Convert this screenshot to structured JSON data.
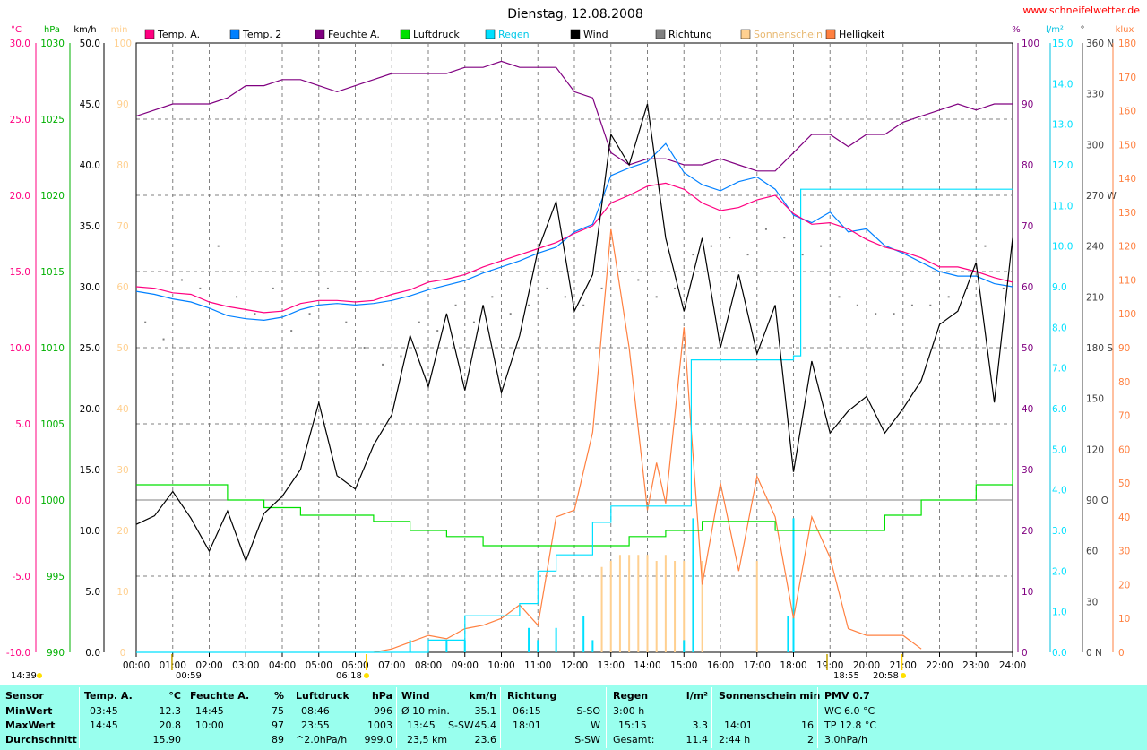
{
  "header": {
    "title": "Dienstag, 12.08.2008",
    "site": "www.schneifelwetter.de"
  },
  "legend": [
    {
      "label": "Temp. A.",
      "color": "#ff0080"
    },
    {
      "label": "Temp. 2",
      "color": "#0080ff"
    },
    {
      "label": "Feuchte A.",
      "color": "#800080"
    },
    {
      "label": "Luftdruck",
      "color": "#00e000"
    },
    {
      "label": "Regen",
      "color": "#00e0ff"
    },
    {
      "label": "Wind",
      "color": "#000000"
    },
    {
      "label": "Richtung",
      "color": "#808080"
    },
    {
      "label": "Sonnenschein",
      "color": "#ffd090"
    },
    {
      "label": "Helligkeit",
      "color": "#ff8040"
    }
  ],
  "axes_units": {
    "temp": "°C",
    "pressure": "hPa",
    "wind": "km/h",
    "sun": "min",
    "humidity": "%",
    "rain": "l/m²",
    "direction": "°",
    "bright": "klux"
  },
  "sun_events": {
    "sunrise": "06:18",
    "sunset": "20:58",
    "moon_set": "00:59",
    "moon_rise": "18:55",
    "day_length": "14:39"
  },
  "chart_data": {
    "type": "line",
    "x_range": [
      "00:00",
      "24:00"
    ],
    "x_ticks": [
      "00:00",
      "01:00",
      "02:00",
      "03:00",
      "04:00",
      "05:00",
      "06:00",
      "07:00",
      "08:00",
      "09:00",
      "10:00",
      "11:00",
      "12:00",
      "13:00",
      "14:00",
      "15:00",
      "16:00",
      "17:00",
      "18:00",
      "19:00",
      "20:00",
      "21:00",
      "22:00",
      "23:00",
      "24:00"
    ],
    "y_axes": {
      "temp": {
        "range": [
          -10,
          30
        ],
        "ticks": [
          "-10.0",
          "-5.0",
          "0.0",
          "5.0",
          "10.0",
          "15.0",
          "20.0",
          "25.0",
          "30.0"
        ],
        "color": "#ff0080"
      },
      "pressure": {
        "range": [
          990,
          1030
        ],
        "ticks": [
          "990",
          "995",
          "1000",
          "1005",
          "1010",
          "1015",
          "1020",
          "1025",
          "1030"
        ],
        "color": "#00b000"
      },
      "wind": {
        "range": [
          0,
          50
        ],
        "ticks": [
          "0.0",
          "5.0",
          "10.0",
          "15.0",
          "20.0",
          "25.0",
          "30.0",
          "35.0",
          "40.0",
          "45.0",
          "50.0"
        ],
        "color": "#000000"
      },
      "sun": {
        "range": [
          0,
          100
        ],
        "ticks": [
          "0",
          "10",
          "20",
          "30",
          "40",
          "50",
          "60",
          "70",
          "80",
          "90",
          "100"
        ],
        "color": "#ffd090"
      },
      "humidity": {
        "range": [
          0,
          100
        ],
        "ticks": [
          "0",
          "10",
          "20",
          "30",
          "40",
          "50",
          "60",
          "70",
          "80",
          "90",
          "100"
        ],
        "color": "#800080"
      },
      "rain": {
        "range": [
          0,
          15
        ],
        "ticks": [
          "0.0",
          "1.0",
          "2.0",
          "3.0",
          "4.0",
          "5.0",
          "6.0",
          "7.0",
          "8.0",
          "9.0",
          "10.0",
          "11.0",
          "12.0",
          "13.0",
          "14.0",
          "15.0"
        ],
        "color": "#00e0ff"
      },
      "direction": {
        "range": [
          0,
          360
        ],
        "ticks": [
          "0 N",
          "30",
          "60",
          "90 O",
          "120",
          "150",
          "180 S",
          "210",
          "240",
          "270 W",
          "300",
          "330",
          "360 N"
        ],
        "color": "#404040"
      },
      "bright": {
        "range": [
          0,
          180
        ],
        "ticks": [
          "0",
          "10",
          "20",
          "30",
          "40",
          "50",
          "60",
          "70",
          "80",
          "90",
          "100",
          "110",
          "120",
          "130",
          "140",
          "150",
          "160",
          "170",
          "180"
        ],
        "color": "#ff8040"
      }
    },
    "series": [
      {
        "name": "Temp. A.",
        "axis": "temp",
        "color": "#ff0080",
        "x": [
          0,
          0.5,
          1,
          1.5,
          2,
          2.5,
          3,
          3.5,
          4,
          4.5,
          5,
          5.5,
          6,
          6.5,
          7,
          7.5,
          8,
          8.5,
          9,
          9.5,
          10,
          10.5,
          11,
          11.5,
          12,
          12.5,
          13,
          13.5,
          14,
          14.5,
          15,
          15.5,
          16,
          16.5,
          17,
          17.5,
          18,
          18.5,
          19,
          19.5,
          20,
          20.5,
          21,
          21.5,
          22,
          22.5,
          23,
          23.5,
          24
        ],
        "y": [
          14.0,
          13.9,
          13.6,
          13.5,
          13.0,
          12.7,
          12.5,
          12.3,
          12.4,
          12.9,
          13.1,
          13.1,
          13.0,
          13.1,
          13.5,
          13.8,
          14.3,
          14.5,
          14.8,
          15.3,
          15.7,
          16.1,
          16.5,
          16.9,
          17.5,
          18.0,
          19.5,
          20.0,
          20.6,
          20.8,
          20.4,
          19.5,
          19.0,
          19.2,
          19.7,
          20.0,
          18.8,
          18.1,
          18.2,
          17.8,
          17.1,
          16.6,
          16.3,
          15.9,
          15.3,
          15.3,
          15.0,
          14.6,
          14.3
        ]
      },
      {
        "name": "Temp. 2",
        "axis": "temp",
        "color": "#0080ff",
        "x": [
          0,
          0.5,
          1,
          1.5,
          2,
          2.5,
          3,
          3.5,
          4,
          4.5,
          5,
          5.5,
          6,
          6.5,
          7,
          7.5,
          8,
          8.5,
          9,
          9.5,
          10,
          10.5,
          11,
          11.5,
          12,
          12.5,
          13,
          13.5,
          14,
          14.5,
          15,
          15.5,
          16,
          16.5,
          17,
          17.5,
          18,
          18.5,
          19,
          19.5,
          20,
          20.5,
          21,
          21.5,
          22,
          22.5,
          23,
          23.5,
          24
        ],
        "y": [
          13.7,
          13.5,
          13.2,
          13.0,
          12.6,
          12.1,
          11.9,
          11.8,
          12.0,
          12.5,
          12.8,
          12.9,
          12.8,
          12.9,
          13.1,
          13.4,
          13.8,
          14.1,
          14.4,
          14.9,
          15.3,
          15.7,
          16.2,
          16.6,
          17.6,
          18.1,
          21.3,
          21.8,
          22.2,
          23.4,
          21.5,
          20.7,
          20.3,
          20.9,
          21.2,
          20.4,
          18.7,
          18.2,
          18.9,
          17.6,
          17.8,
          16.7,
          16.2,
          15.6,
          15.0,
          14.7,
          14.7,
          14.2,
          14.0
        ]
      },
      {
        "name": "Feuchte A.",
        "axis": "humidity",
        "color": "#800080",
        "x": [
          0,
          0.5,
          1,
          1.5,
          2,
          2.5,
          3,
          3.5,
          4,
          4.5,
          5,
          5.5,
          6,
          6.5,
          7,
          7.5,
          8,
          8.5,
          9,
          9.5,
          10,
          10.5,
          11,
          11.5,
          12,
          12.5,
          13,
          13.5,
          14,
          14.5,
          15,
          15.5,
          16,
          16.5,
          17,
          17.5,
          18,
          18.5,
          19,
          19.5,
          20,
          20.5,
          21,
          21.5,
          22,
          22.5,
          23,
          23.5,
          24
        ],
        "y": [
          88,
          89,
          90,
          90,
          90,
          91,
          93,
          93,
          94,
          94,
          93,
          92,
          93,
          94,
          95,
          95,
          95,
          95,
          96,
          96,
          97,
          96,
          96,
          96,
          92,
          91,
          82,
          80,
          81,
          81,
          80,
          80,
          81,
          80,
          79,
          79,
          82,
          85,
          85,
          83,
          85,
          85,
          87,
          88,
          89,
          90,
          89,
          90,
          90
        ]
      },
      {
        "name": "Luftdruck",
        "axis": "pressure",
        "color": "#00e000",
        "x": [
          0,
          1.5,
          2.5,
          3.5,
          4.5,
          5.5,
          6.5,
          7.5,
          8.5,
          9.5,
          10.5,
          11.5,
          12.5,
          13.5,
          14.5,
          15.5,
          16.5,
          17.5,
          18.5,
          19.5,
          20.5,
          21.5,
          22.5,
          23,
          23.5,
          24
        ],
        "y": [
          1001,
          1001,
          1000,
          999.5,
          999,
          999,
          998.6,
          998,
          997.6,
          997,
          997,
          997,
          997,
          997.6,
          998,
          998.6,
          998.6,
          998,
          998,
          998,
          999,
          1000,
          1000,
          1001,
          1001,
          1002
        ]
      },
      {
        "name": "Regen",
        "axis": "rain",
        "color": "#00e0ff",
        "x": [
          0,
          7.5,
          8,
          8.5,
          9,
          10,
          10.5,
          11,
          11.5,
          12,
          12.5,
          13,
          14,
          15,
          15.2,
          15.5,
          17,
          18,
          18.2,
          18.5,
          24
        ],
        "y": [
          0,
          0,
          0.3,
          0.3,
          0.9,
          0.9,
          1.2,
          2.0,
          2.4,
          2.4,
          3.2,
          3.6,
          3.6,
          3.6,
          7.2,
          7.2,
          7.2,
          7.3,
          11.4,
          11.4,
          11.4
        ]
      },
      {
        "name": "Wind",
        "axis": "wind",
        "color": "#000000",
        "x": [
          0,
          0.5,
          1,
          1.5,
          2,
          2.5,
          3,
          3.5,
          4,
          4.5,
          5,
          5.5,
          6,
          6.5,
          7,
          7.5,
          8,
          8.5,
          9,
          9.5,
          10,
          10.5,
          11,
          11.5,
          12,
          12.5,
          13,
          13.5,
          14,
          14.5,
          15,
          15.5,
          16,
          16.5,
          17,
          17.5,
          18,
          18.5,
          19,
          19.5,
          20,
          20.5,
          21,
          21.5,
          22,
          22.5,
          23,
          23.5,
          24
        ],
        "y": [
          10.5,
          11.2,
          13.2,
          11.0,
          8.3,
          11.6,
          7.5,
          11.4,
          12.8,
          15.0,
          20.5,
          14.5,
          13.4,
          17.0,
          19.5,
          26.0,
          21.8,
          27.8,
          21.5,
          28.5,
          21.3,
          26.0,
          33.0,
          37.0,
          28.0,
          31.0,
          42.5,
          40.0,
          45.0,
          34.0,
          28.0,
          34.0,
          25.0,
          31.0,
          24.5,
          28.5,
          14.8,
          23.9,
          18.0,
          19.8,
          21.0,
          18.0,
          20.0,
          22.3,
          26.9,
          28.0,
          32.0,
          20.5,
          34.0
        ]
      },
      {
        "name": "Richtung",
        "axis": "direction",
        "color": "#808080",
        "x": [
          0.25,
          0.75,
          1.25,
          1.75,
          2.25,
          2.75,
          3.25,
          3.75,
          4.25,
          4.75,
          5.25,
          5.75,
          6.25,
          6.75,
          7.25,
          7.75,
          8.25,
          8.75,
          9.25,
          9.75,
          10.25,
          10.75,
          11.25,
          11.75,
          12.25,
          12.75,
          13.25,
          13.75,
          14.25,
          14.75,
          15.25,
          15.75,
          16.25,
          16.75,
          17.25,
          17.75,
          18.25,
          18.75,
          19.25,
          19.75,
          20.25,
          20.75,
          21.25,
          21.75,
          22.25,
          22.75,
          23.25,
          23.75
        ],
        "y": [
          195,
          185,
          220,
          215,
          240,
          210,
          200,
          215,
          190,
          200,
          215,
          195,
          180,
          170,
          175,
          195,
          190,
          205,
          195,
          210,
          200,
          205,
          215,
          210,
          205,
          215,
          225,
          220,
          210,
          215,
          235,
          240,
          245,
          235,
          250,
          245,
          235,
          240,
          210,
          205,
          200,
          200,
          205,
          205,
          210,
          215,
          240,
          215
        ]
      },
      {
        "name": "Sonnenschein",
        "axis": "sun",
        "color": "#ffd090",
        "x": [
          12.75,
          13.0,
          13.25,
          13.5,
          13.75,
          14.0,
          14.25,
          14.5,
          14.75,
          15.0,
          15.25,
          15.5,
          17.0
        ],
        "y": [
          14,
          15,
          16,
          16,
          16,
          16,
          15,
          16,
          15,
          15,
          16,
          15,
          15
        ]
      },
      {
        "name": "Helligkeit",
        "axis": "bright",
        "color": "#ff8040",
        "x": [
          6.5,
          7,
          7.5,
          8,
          8.5,
          9,
          9.5,
          10,
          10.5,
          11,
          11.5,
          12,
          12.5,
          13,
          13.5,
          14,
          14.25,
          14.5,
          15,
          15.5,
          16,
          16.5,
          17,
          17.5,
          18,
          18.5,
          19,
          19.5,
          20,
          20.5,
          21,
          21.5
        ],
        "y": [
          0,
          1,
          3,
          5,
          4,
          7,
          8,
          10,
          14,
          8,
          40,
          42,
          65,
          125,
          90,
          42,
          56,
          44,
          96,
          20,
          50,
          24,
          52,
          40,
          10,
          40,
          28,
          7,
          5,
          5,
          5,
          1
        ]
      }
    ]
  },
  "stats": {
    "headers": {
      "sensor": "Sensor",
      "temp": "Temp. A.",
      "temp_unit": "°C",
      "feuchte": "Feuchte A.",
      "feuchte_unit": "%",
      "luftdruck": "Luftdruck",
      "luftdruck_unit": "hPa",
      "wind": "Wind",
      "wind_unit": "km/h",
      "richtung": "Richtung",
      "regen": "Regen",
      "regen_unit": "l/m²",
      "sonne": "Sonnenschein min",
      "pmv": "PMV 0.7"
    },
    "labels": {
      "min": "MinWert",
      "max": "MaxWert",
      "avg": "Durchschnitt"
    },
    "temp": {
      "min_time": "03:45",
      "min_val": "12.3",
      "max_time": "14:45",
      "max_val": "20.8",
      "avg": "15.90"
    },
    "feuchte": {
      "min_time": "14:45",
      "min_val": "75",
      "max_time": "10:00",
      "max_val": "97",
      "avg": "89"
    },
    "luftdruck": {
      "min_time": "08:46",
      "min_val": "996",
      "max_time": "23:55",
      "max_val": "1003",
      "trend": "^2.0hPa/h",
      "avg": "999.0"
    },
    "wind": {
      "r1_label": "Ø 10 min.",
      "r1_val": "35.1",
      "r2_time": "13:45",
      "r2_dir": "S-SW",
      "r2_val": "45.4",
      "r3_dist": "23,5 km",
      "r3_val": "23.6"
    },
    "richtung": {
      "r1_time": "06:15",
      "r1_dir": "S-SO",
      "r2_time": "18:01",
      "r2_dir": "W",
      "r3_dir": "S-SW"
    },
    "regen": {
      "r1_label": "3:00 h",
      "r1_val": "",
      "r2_time": "15:15",
      "r2_val": "3.3",
      "r3_label": "Gesamt:",
      "r3_val": "11.4"
    },
    "sonne": {
      "r2_time": "14:01",
      "r2_val": "16",
      "r3_label": "2:44 h",
      "r3_val": "2"
    },
    "pmv": {
      "r1": "WC 6.0 °C",
      "r2": "TP 12.8 °C",
      "r3": "3.0hPa/h"
    }
  }
}
